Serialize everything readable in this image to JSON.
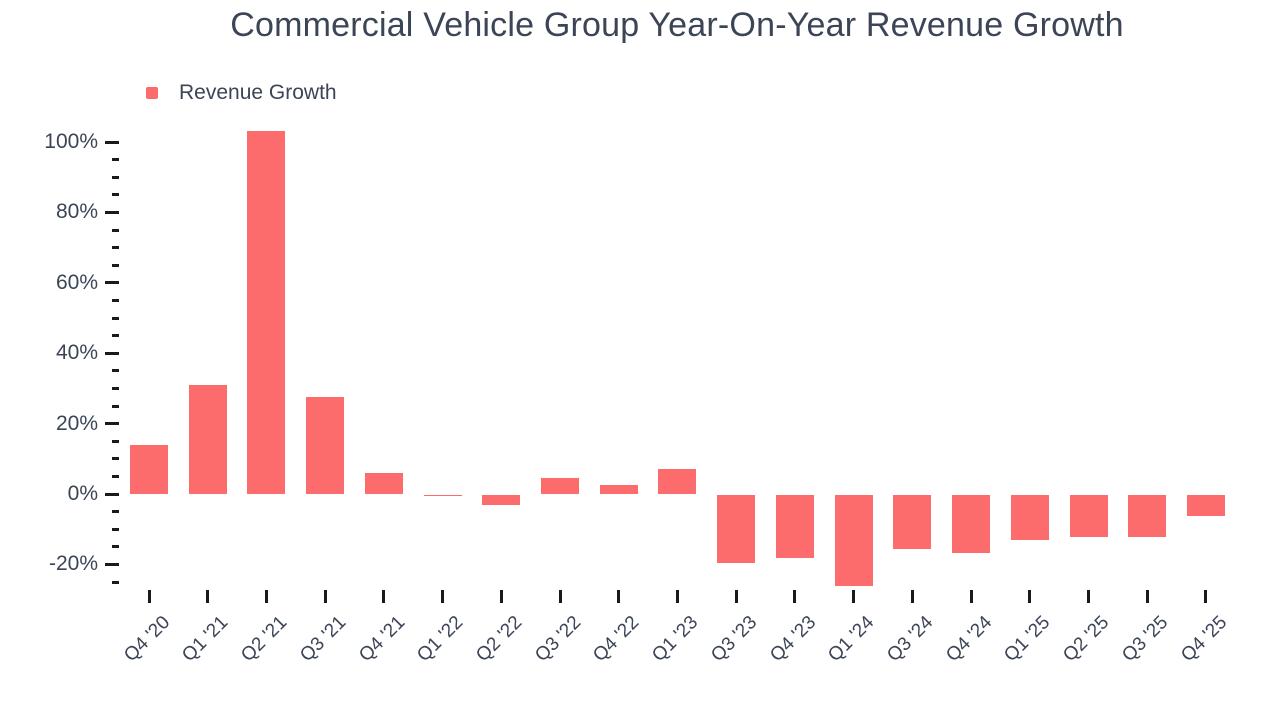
{
  "title": "Commercial Vehicle Group Year-On-Year Revenue Growth",
  "legend": {
    "items": [
      {
        "label": "Revenue Growth",
        "color": "#fc6c6c"
      }
    ]
  },
  "colors": {
    "bar": "#fc6c6c",
    "text": "#3b4556",
    "tick": "#1a1a1a",
    "background": "#ffffff"
  },
  "chart_data": {
    "type": "bar",
    "title": "Commercial Vehicle Group Year-On-Year Revenue Growth",
    "xlabel": "",
    "ylabel": "",
    "grid": false,
    "legend_position": "top-left",
    "categories": [
      "Q4 '20",
      "Q1 '21",
      "Q2 '21",
      "Q3 '21",
      "Q4 '21",
      "Q1 '22",
      "Q2 '22",
      "Q3 '22",
      "Q4 '22",
      "Q1 '23",
      "Q3 '23",
      "Q4 '23",
      "Q1 '24",
      "Q3 '24",
      "Q4 '24",
      "Q1 '25",
      "Q2 '25",
      "Q3 '25",
      "Q4 '25"
    ],
    "series": [
      {
        "name": "Revenue Growth",
        "color": "#fc6c6c",
        "values": [
          14,
          31,
          103,
          27.5,
          6,
          -0.5,
          -3,
          4.5,
          2.5,
          7,
          -19.5,
          -18,
          -26,
          -15.5,
          -16.5,
          -13,
          -12,
          -12,
          -6
        ]
      }
    ],
    "y_axis": {
      "unit": "%",
      "range": [
        -25,
        100
      ],
      "major_ticks": [
        100,
        80,
        60,
        40,
        20,
        0,
        -20
      ],
      "minor_tick_step": 5
    }
  }
}
